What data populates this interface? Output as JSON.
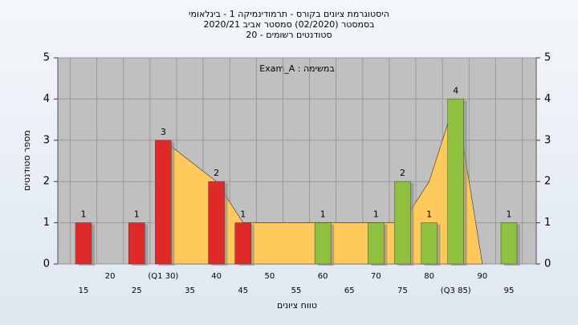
{
  "chart_data": {
    "type": "bar",
    "title": [
      "היסטוגרמת ציונים בקורס - תרמודינמיקה 1 - בינלאומי",
      "בסמסטר  (02/2020)  סמסטר אביב 2020/21",
      "סטודנטים רשומים - 20"
    ],
    "annotation": "במשימה : Exam_A",
    "ylabel": "מספר סטודנטים",
    "xlabel": "טווח ציונים",
    "categories": [
      "15",
      "20",
      "25",
      "(Q1 30)",
      "35",
      "40",
      "45",
      "50",
      "55",
      "60",
      "65",
      "70",
      "75",
      "80",
      "(Q3 85)",
      "90",
      "95"
    ],
    "values": [
      1,
      0,
      1,
      3,
      0,
      2,
      1,
      0,
      0,
      1,
      0,
      1,
      2,
      1,
      4,
      0,
      1
    ],
    "colors": [
      "#e02a2a",
      "#e02a2a",
      "#e02a2a",
      "#e02a2a",
      "#e02a2a",
      "#e02a2a",
      "#e02a2a",
      "#e02a2a",
      "#e02a2a",
      "#8fc13f",
      "#8fc13f",
      "#8fc13f",
      "#8fc13f",
      "#8fc13f",
      "#8fc13f",
      "#8fc13f",
      "#8fc13f"
    ],
    "area": {
      "color": "#ffc95c",
      "values": [
        null,
        null,
        null,
        3,
        2.5,
        2,
        1,
        1,
        1,
        1,
        1,
        1,
        1,
        2,
        4,
        0,
        null
      ]
    },
    "ylim": [
      0,
      5
    ],
    "yticks": [
      0,
      1,
      2,
      3,
      4,
      5
    ],
    "grid": true
  }
}
